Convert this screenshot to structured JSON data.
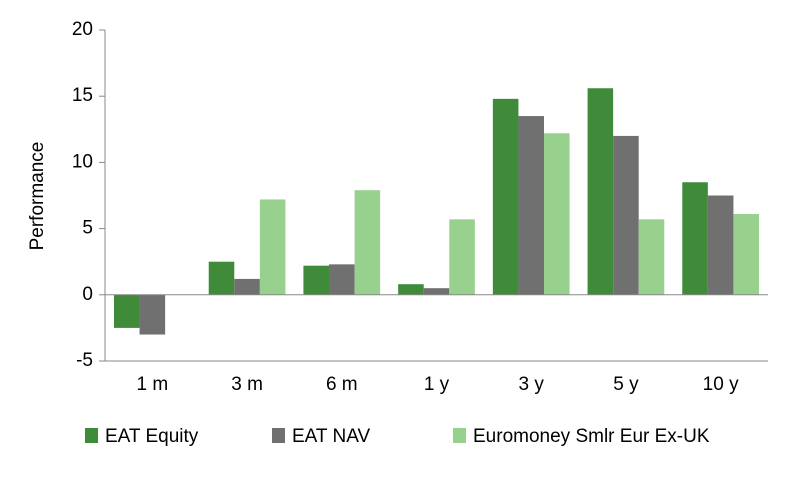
{
  "chart_data": {
    "type": "bar",
    "y_label": "Performance",
    "categories": [
      "1 m",
      "3 m",
      "6 m",
      "1 y",
      "3 y",
      "5 y",
      "10 y"
    ],
    "series": [
      {
        "name": "EAT Equity",
        "color": "#3f8b3a",
        "values": [
          -2.5,
          2.5,
          2.2,
          0.8,
          14.8,
          15.6,
          8.5
        ]
      },
      {
        "name": "EAT NAV",
        "color": "#707070",
        "values": [
          -3.0,
          1.2,
          2.3,
          0.5,
          13.5,
          12.0,
          7.5
        ]
      },
      {
        "name": "Euromoney Smlr Eur Ex-UK",
        "color": "#98d08e",
        "values": [
          null,
          7.2,
          7.9,
          5.7,
          12.2,
          5.7,
          6.1
        ]
      }
    ],
    "ylim": [
      -5,
      20
    ],
    "yticks": [
      -5,
      0,
      5,
      10,
      15,
      20
    ],
    "grid": false
  }
}
